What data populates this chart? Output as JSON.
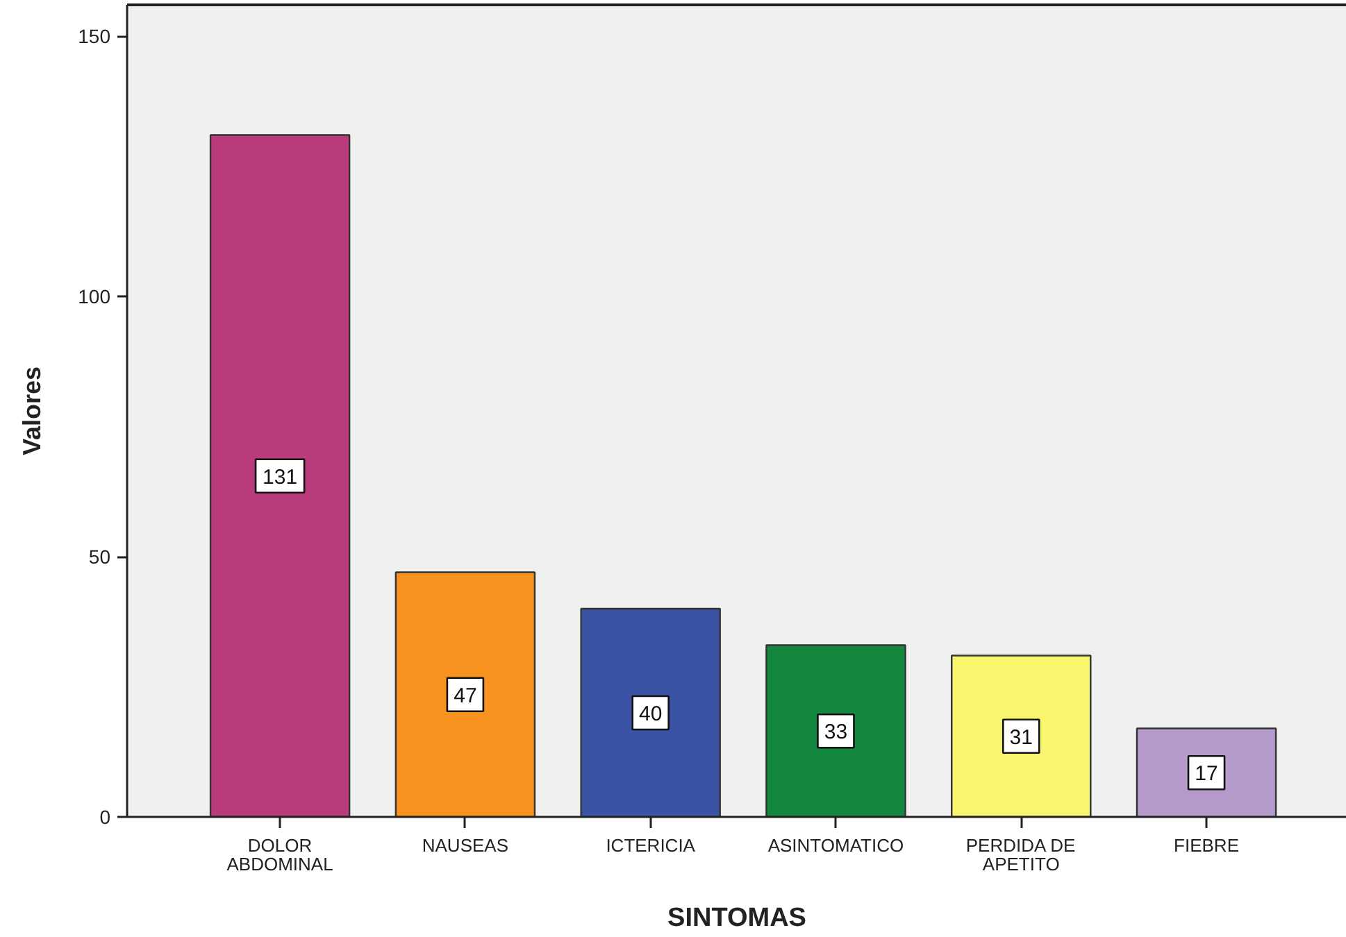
{
  "chart_data": {
    "type": "bar",
    "xlabel": "SINTOMAS",
    "ylabel": "Valores",
    "categories": [
      "DOLOR\nABDOMINAL",
      "NAUSEAS",
      "ICTERICIA",
      "ASINTOMATICO",
      "PERDIDA DE\nAPETITO",
      "FIEBRE"
    ],
    "values": [
      131,
      47,
      40,
      33,
      31,
      17
    ],
    "colors": [
      "#b93b7b",
      "#f7931e",
      "#3b53a4",
      "#12873d",
      "#f8f66f",
      "#b59bcb"
    ],
    "ylim": [
      0,
      156
    ],
    "yticks": [
      0,
      50,
      100,
      150
    ],
    "data_labels": true
  }
}
